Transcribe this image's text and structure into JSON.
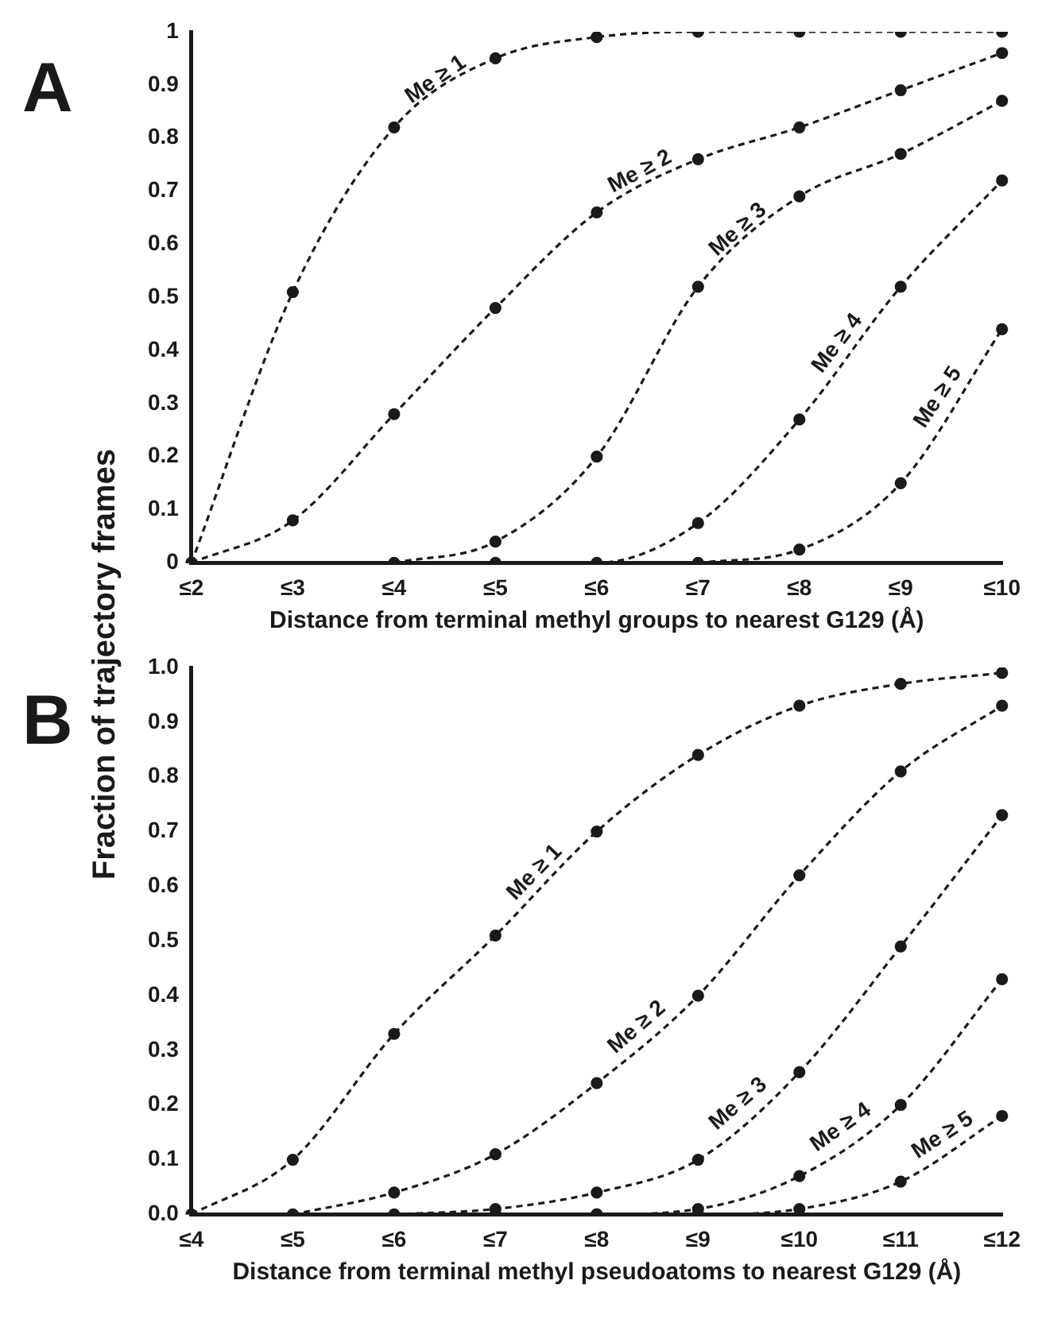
{
  "chart_data": [
    {
      "type": "line",
      "annotations": [
        "A"
      ],
      "xlabel": "Distance from terminal methyl groups to nearest G129 (Å)",
      "categories": [
        "≤2",
        "≤3",
        "≤4",
        "≤5",
        "≤6",
        "≤7",
        "≤8",
        "≤9",
        "≤10"
      ],
      "series": [
        {
          "name": "Me ≥ 1",
          "color": "#1a1a1a",
          "values": [
            0,
            0.51,
            0.82,
            0.95,
            0.99,
            1,
            1,
            1,
            1
          ]
        },
        {
          "name": "Me ≥ 2",
          "color": "#1a1a1a",
          "values": [
            0,
            0.08,
            0.28,
            0.48,
            0.66,
            0.76,
            0.82,
            0.89,
            0.96
          ]
        },
        {
          "name": "Me ≥ 3",
          "color": "#1a1a1a",
          "values": [
            null,
            null,
            0,
            0.04,
            0.2,
            0.52,
            0.69,
            0.77,
            0.87
          ]
        },
        {
          "name": "Me ≥ 4",
          "color": "#1a1a1a",
          "values": [
            null,
            null,
            null,
            0,
            0,
            0.075,
            0.27,
            0.52,
            0.72
          ]
        },
        {
          "name": "Me ≥ 5",
          "color": "#1a1a1a",
          "values": [
            null,
            null,
            null,
            null,
            null,
            0,
            0.025,
            0.15,
            0.44
          ]
        }
      ],
      "ylim": [
        0,
        1
      ],
      "yticks": [
        0,
        0.1,
        0.2,
        0.3,
        0.4,
        0.5,
        0.6,
        0.7,
        0.8,
        0.9,
        1
      ],
      "grid": false,
      "legend": false,
      "marker": "circle",
      "line_style": "dashed"
    },
    {
      "type": "line",
      "annotations": [
        "B"
      ],
      "xlabel": "Distance from terminal methyl pseudoatoms to nearest G129 (Å)",
      "ylabel": "Fraction of trajectory frames",
      "categories": [
        "≤4",
        "≤5",
        "≤6",
        "≤7",
        "≤8",
        "≤9",
        "≤10",
        "≤11",
        "≤12"
      ],
      "series": [
        {
          "name": "Me ≥ 1",
          "color": "#1a1a1a",
          "values": [
            0,
            0.1,
            0.33,
            0.51,
            0.7,
            0.84,
            0.93,
            0.97,
            0.99
          ]
        },
        {
          "name": "Me ≥ 2",
          "color": "#1a1a1a",
          "values": [
            null,
            0,
            0.04,
            0.11,
            0.24,
            0.4,
            0.62,
            0.81,
            0.93
          ]
        },
        {
          "name": "Me ≥ 3",
          "color": "#1a1a1a",
          "values": [
            null,
            null,
            0,
            0.01,
            0.04,
            0.1,
            0.26,
            0.49,
            0.73
          ]
        },
        {
          "name": "Me ≥ 4",
          "color": "#1a1a1a",
          "values": [
            null,
            null,
            null,
            0,
            0,
            0.01,
            0.07,
            0.2,
            0.43
          ]
        },
        {
          "name": "Me ≥ 5",
          "color": "#1a1a1a",
          "values": [
            null,
            null,
            null,
            null,
            0,
            0,
            0.01,
            0.06,
            0.18
          ]
        }
      ],
      "ylim": [
        0,
        1
      ],
      "yticks": [
        {
          "value": 0,
          "label": "0.0"
        },
        {
          "value": 0.1,
          "label": "0.1"
        },
        {
          "value": 0.2,
          "label": "0.2"
        },
        {
          "value": 0.3,
          "label": "0.3"
        },
        {
          "value": 0.4,
          "label": "0.4"
        },
        {
          "value": 0.5,
          "label": "0.5"
        },
        {
          "value": 0.6,
          "label": "0.6"
        },
        {
          "value": 0.7,
          "label": "0.7"
        },
        {
          "value": 0.8,
          "label": "0.8"
        },
        {
          "value": 0.9,
          "label": "0.9"
        },
        {
          "value": 1,
          "label": "1.0"
        }
      ],
      "grid": false,
      "legend": false,
      "marker": "circle",
      "line_style": "dashed"
    }
  ]
}
